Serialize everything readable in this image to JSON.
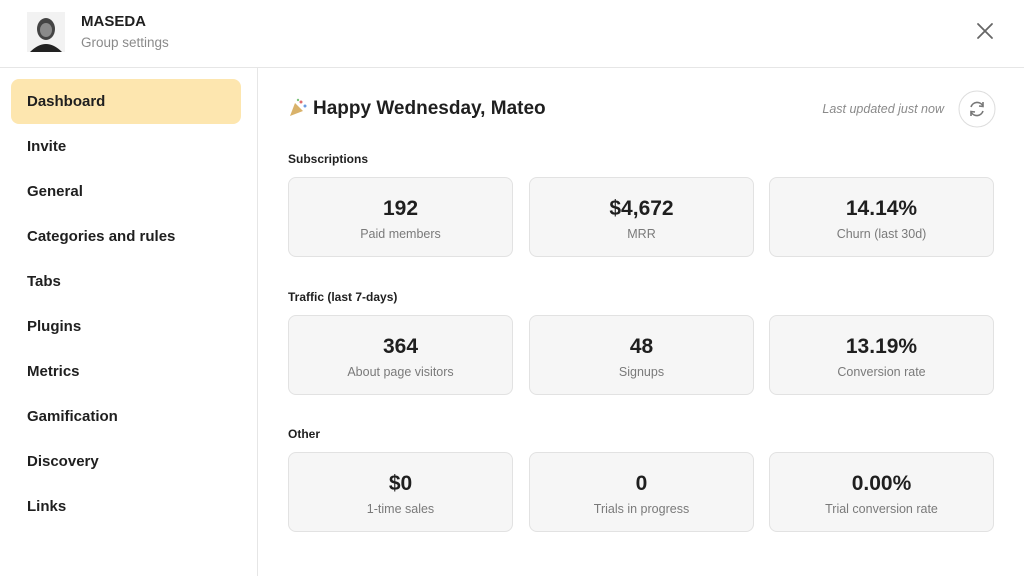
{
  "header": {
    "title": "MASEDA",
    "subtitle": "Group settings"
  },
  "sidebar": {
    "items": [
      "Dashboard",
      "Invite",
      "General",
      "Categories and rules",
      "Tabs",
      "Plugins",
      "Metrics",
      "Gamification",
      "Discovery",
      "Links"
    ],
    "active": 0
  },
  "main": {
    "greeting": "Happy Wednesday, Mateo",
    "last_updated": "Last updated just now",
    "sections": [
      {
        "title": "Subscriptions",
        "cards": [
          {
            "value": "192",
            "label": "Paid members"
          },
          {
            "value": "$4,672",
            "label": "MRR"
          },
          {
            "value": "14.14%",
            "label": "Churn (last 30d)"
          }
        ]
      },
      {
        "title": "Traffic (last 7-days)",
        "cards": [
          {
            "value": "364",
            "label": "About page visitors"
          },
          {
            "value": "48",
            "label": "Signups"
          },
          {
            "value": "13.19%",
            "label": "Conversion rate"
          }
        ]
      },
      {
        "title": "Other",
        "cards": [
          {
            "value": "$0",
            "label": "1-time sales"
          },
          {
            "value": "0",
            "label": "Trials in progress"
          },
          {
            "value": "0.00%",
            "label": "Trial conversion rate"
          }
        ]
      }
    ]
  }
}
